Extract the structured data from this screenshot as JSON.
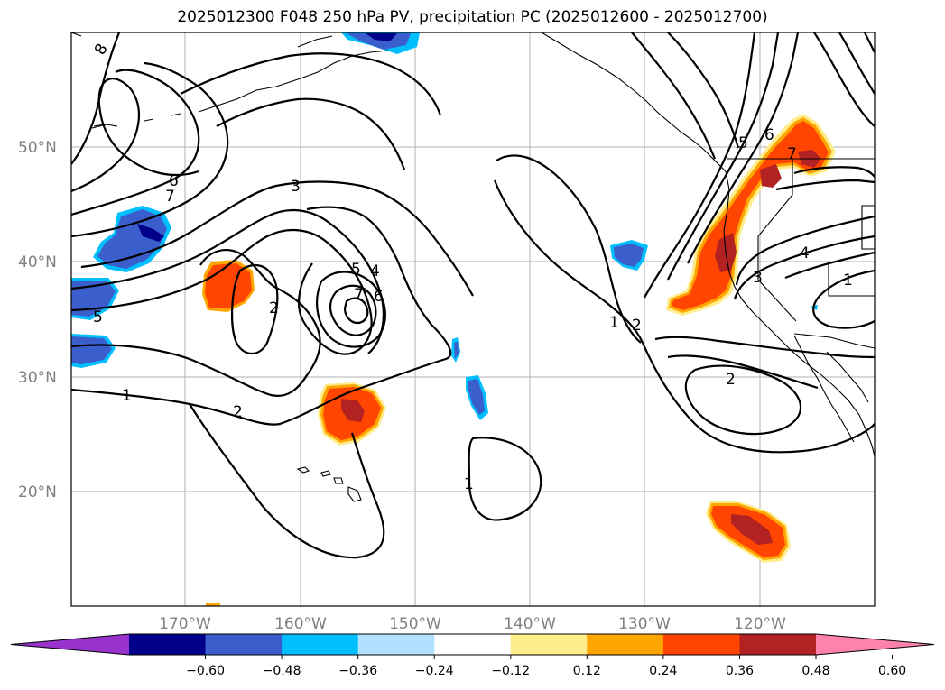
{
  "title": "2025012300 F048 250 hPa PV, precipitation PC (2025012600 - 2025012700)",
  "lat_labels": [
    "50°N",
    "40°N",
    "30°N",
    "20°N"
  ],
  "lon_labels": [
    "170°W",
    "160°W",
    "150°W",
    "140°W",
    "130°W",
    "120°W"
  ],
  "contour_labels": [
    "8",
    "7",
    "6",
    "5",
    "3",
    "2",
    "5",
    "4",
    "7",
    "6",
    "2",
    "1",
    "2",
    "1",
    "5",
    "6",
    "7",
    "4",
    "1",
    "3",
    "1",
    "2",
    "3",
    "1"
  ],
  "colorbar": {
    "colors": [
      "#9932cc",
      "#00008b",
      "#3a5fcd",
      "#00bfff",
      "#b0e2ff",
      "#ffffff",
      "#ffec8b",
      "#ffa500",
      "#ff4500",
      "#b22222",
      "#ff82ab"
    ],
    "ticks": [
      "−0.60",
      "−0.48",
      "−0.36",
      "−0.24",
      "−0.12",
      "0.12",
      "0.24",
      "0.36",
      "0.48",
      "0.60"
    ]
  },
  "fill_colors": {
    "neg_light": "#00bfff",
    "neg_mid": "#3a5fcd",
    "neg_dark": "#00008b",
    "pos_light": "#ffec8b",
    "pos_orange": "#ffa500",
    "pos_red": "#ff4500",
    "pos_dark": "#b22222"
  }
}
